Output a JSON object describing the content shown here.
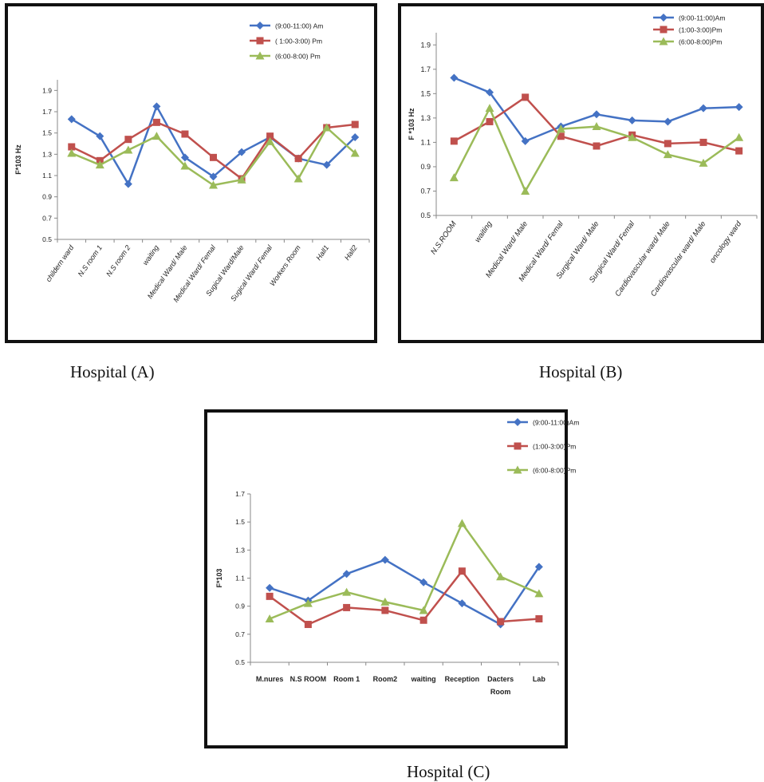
{
  "colors": {
    "blue": "#4472C4",
    "red": "#C0504D",
    "green": "#9BBB59",
    "grid": "#d9d9d9",
    "axis": "#888888"
  },
  "captions": {
    "a": "Hospital (A)",
    "b": "Hospital (B)",
    "c": "Hospital (C)"
  },
  "chart_data": [
    {
      "type": "line",
      "title": "",
      "xlabel": "",
      "ylabel": "F*103 Hz",
      "ylim": [
        0.5,
        2.0
      ],
      "yticks": [
        "0.5",
        "0.7",
        "0.9",
        "1.1",
        "1.3",
        "1.5",
        "1.7",
        "1.9"
      ],
      "categories": [
        "childern ward",
        "N.S room 1",
        "N.S room 2",
        "waiting",
        "Medical Ward/ Male",
        "Medical Ward/ Femal",
        "Sugical Ward/Male",
        "Sugical Ward/ Femal",
        "Workers Room",
        "Hall1",
        "Hall2"
      ],
      "legend_position": "top-right",
      "grid": false,
      "series": [
        {
          "name": "(9:00-11:00) Am",
          "color": "#4472C4",
          "marker": "diamond",
          "values": [
            1.63,
            1.47,
            1.02,
            1.75,
            1.27,
            1.09,
            1.32,
            1.46,
            1.26,
            1.2,
            1.46
          ]
        },
        {
          "name": "( 1:00-3:00) Pm",
          "color": "#C0504D",
          "marker": "square",
          "values": [
            1.37,
            1.24,
            1.44,
            1.6,
            1.49,
            1.27,
            1.07,
            1.47,
            1.26,
            1.55,
            1.58
          ]
        },
        {
          "name": "(6:00-8:00) Pm",
          "color": "#9BBB59",
          "marker": "triangle",
          "values": [
            1.31,
            1.2,
            1.34,
            1.47,
            1.19,
            1.01,
            1.06,
            1.42,
            1.07,
            1.55,
            1.31
          ]
        }
      ]
    },
    {
      "type": "line",
      "title": "",
      "xlabel": "",
      "ylabel": "F *103 Hz",
      "ylim": [
        0.5,
        2.0
      ],
      "yticks": [
        "0.5",
        "0.7",
        "0.9",
        "1.1",
        "1.3",
        "1.5",
        "1.7",
        "1.9"
      ],
      "categories": [
        "N.S.ROOM",
        "waiting",
        "Medical Ward/ Male",
        "Medical Ward/ Femal",
        "Surgical Ward/ Male",
        "Surgical Ward/ Femal",
        "Cardiovascular  ward/ Male",
        "Cardiovascular  ward/ Male",
        "oncology ward"
      ],
      "legend_position": "top-right",
      "grid": false,
      "series": [
        {
          "name": "(9:00-11:00)Am",
          "color": "#4472C4",
          "marker": "diamond",
          "values": [
            1.63,
            1.51,
            1.11,
            1.23,
            1.33,
            1.28,
            1.27,
            1.38,
            1.39
          ]
        },
        {
          "name": "(1:00-3:00)Pm",
          "color": "#C0504D",
          "marker": "square",
          "values": [
            1.11,
            1.27,
            1.47,
            1.15,
            1.07,
            1.16,
            1.09,
            1.1,
            1.03
          ]
        },
        {
          "name": "(6:00-8:00)Pm",
          "color": "#9BBB59",
          "marker": "triangle",
          "values": [
            0.81,
            1.38,
            0.7,
            1.21,
            1.23,
            1.14,
            1.0,
            0.93,
            1.14
          ]
        }
      ]
    },
    {
      "type": "line",
      "title": "",
      "xlabel": "",
      "ylabel": "F*103",
      "ylim": [
        0.5,
        1.7
      ],
      "yticks": [
        "0.5",
        "0.7",
        "0.9",
        "1.1",
        "1.3",
        "1.5",
        "1.7"
      ],
      "categories": [
        "M.nures",
        "N.S ROOM",
        "Room 1",
        "Room2",
        "waiting",
        "Reception",
        "Dacters Room",
        "Lab"
      ],
      "legend_position": "top-right",
      "grid": false,
      "series": [
        {
          "name": "(9:00-11:00)Am",
          "color": "#4472C4",
          "marker": "diamond",
          "values": [
            1.03,
            0.94,
            1.13,
            1.23,
            1.07,
            0.92,
            0.77,
            1.18
          ]
        },
        {
          "name": "(1:00-3:00)Pm",
          "color": "#C0504D",
          "marker": "square",
          "values": [
            0.97,
            0.77,
            0.89,
            0.87,
            0.8,
            1.15,
            0.79,
            0.81
          ]
        },
        {
          "name": "(6:00-8:00)Pm",
          "color": "#9BBB59",
          "marker": "triangle",
          "values": [
            0.81,
            0.92,
            1.0,
            0.93,
            0.87,
            1.49,
            1.11,
            0.99
          ]
        }
      ]
    }
  ]
}
